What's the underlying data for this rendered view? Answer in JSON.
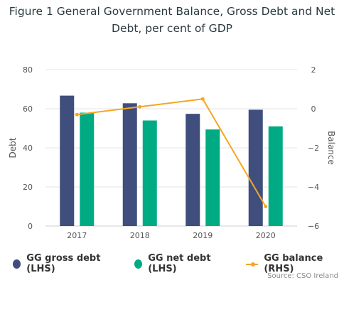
{
  "title_line1": "Figure 1 General Government Balance, Gross Debt and Net",
  "title_line2": "Debt, per cent of GDP",
  "source": "Source: CSO Ireland",
  "colors": {
    "gross": "#3f4e7c",
    "net": "#00ab84",
    "balance": "#f6a623",
    "grid": "#e6e6e6"
  },
  "legend": {
    "gross": "GG gross debt (LHS)",
    "net": "GG net debt (LHS)",
    "balance": "GG balance (RHS)"
  },
  "chart_data": {
    "type": "bar",
    "categories": [
      "2017",
      "2018",
      "2019",
      "2020"
    ],
    "series": [
      {
        "name": "GG gross debt (LHS)",
        "type": "bar",
        "axis": "left",
        "values": [
          66.7,
          62.8,
          57.4,
          59.5
        ]
      },
      {
        "name": "GG net debt (LHS)",
        "type": "bar",
        "axis": "left",
        "values": [
          58.0,
          54.0,
          49.4,
          51.0
        ]
      },
      {
        "name": "GG balance (RHS)",
        "type": "line",
        "axis": "right",
        "values": [
          -0.3,
          0.1,
          0.5,
          -5.0
        ]
      }
    ],
    "ylabel_left": "Debt",
    "ylabel_right": "Balance",
    "ylim_left": [
      0,
      80
    ],
    "ylim_right": [
      -6,
      2
    ],
    "yticks_left": [
      "0",
      "20",
      "40",
      "60",
      "80"
    ],
    "yticks_right": [
      "−6",
      "−4",
      "−2",
      "0",
      "2"
    ],
    "grid": true,
    "legend_position": "bottom"
  }
}
